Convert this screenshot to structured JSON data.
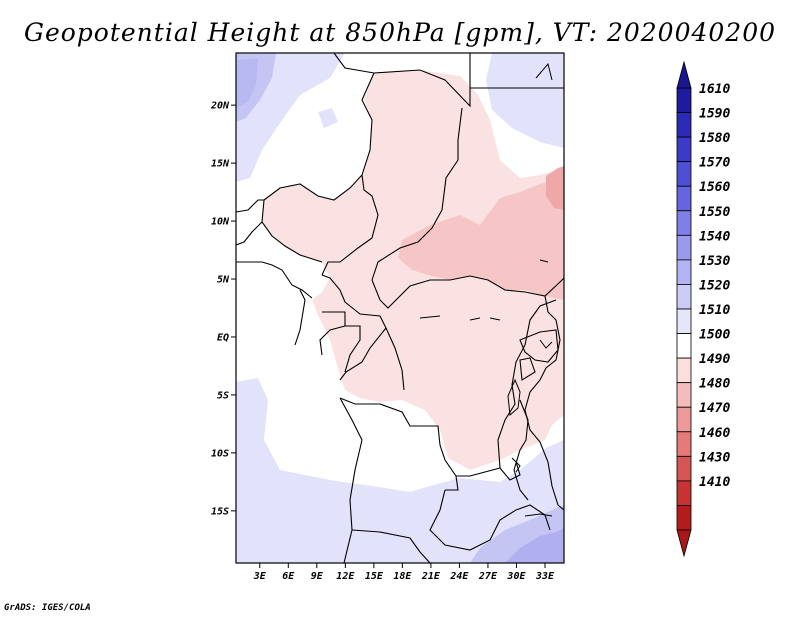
{
  "title": "Geopotential Height at 850hPa [gpm], VT: 2020040200",
  "credit": "GrADS: IGES/COLA",
  "map": {
    "lat_labels": [
      "20N",
      "15N",
      "10N",
      "5N",
      "EQ",
      "5S",
      "10S",
      "15S"
    ],
    "lat_values": [
      20,
      15,
      10,
      5,
      0,
      -5,
      -10,
      -15
    ],
    "lon_labels": [
      "3E",
      "6E",
      "9E",
      "12E",
      "15E",
      "18E",
      "21E",
      "24E",
      "27E",
      "30E",
      "33E"
    ],
    "lon_values": [
      3,
      6,
      9,
      12,
      15,
      18,
      21,
      24,
      27,
      30,
      33
    ],
    "lon_range": [
      0.5,
      35
    ],
    "lat_range": [
      -19.5,
      24.5
    ]
  },
  "colorbar": {
    "labels": [
      "1610",
      "1590",
      "1580",
      "1570",
      "1560",
      "1550",
      "1540",
      "1530",
      "1520",
      "1510",
      "1500",
      "1490",
      "1480",
      "1470",
      "1460",
      "1430",
      "1410"
    ],
    "colors": [
      "#1f1aa0",
      "#2b2bb5",
      "#3b3bc8",
      "#4f4fd6",
      "#6565e0",
      "#7f7fe8",
      "#9999ee",
      "#b3b3f3",
      "#ccccf7",
      "#e6e6fb",
      "#ffffff",
      "#fbdede",
      "#f5bcbc",
      "#ee9a9a",
      "#e57a7a",
      "#d65555",
      "#c73232",
      "#b31c1c"
    ],
    "top_arrow_color": "#1a1690",
    "bottom_arrow_color": "#a81818"
  }
}
